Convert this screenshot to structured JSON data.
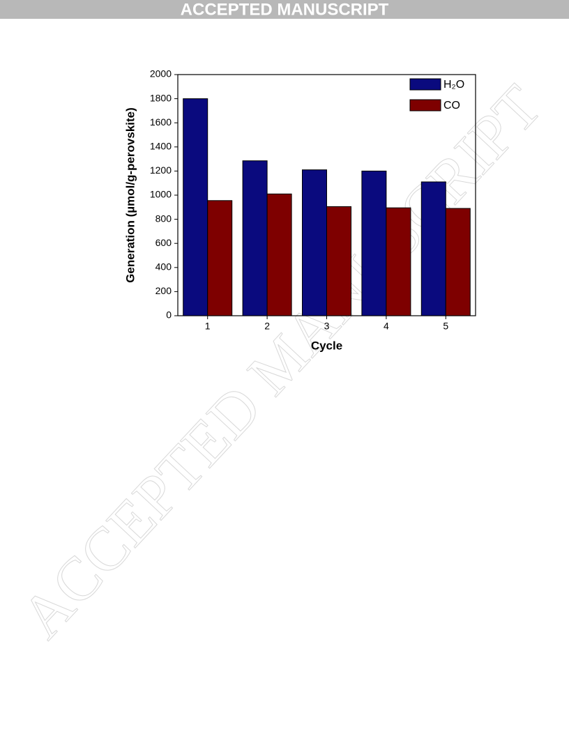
{
  "header": "ACCEPTED MANUSCRIPT",
  "watermark": "ACCEPTED MANUSCRIPT",
  "chart_data": {
    "type": "bar",
    "categories": [
      "1",
      "2",
      "3",
      "4",
      "5"
    ],
    "series": [
      {
        "name": "H₂O",
        "color": "#0a0a7e",
        "values": [
          1800,
          1285,
          1210,
          1200,
          1110
        ]
      },
      {
        "name": "CO",
        "color": "#7e0000",
        "values": [
          955,
          1010,
          905,
          895,
          890
        ]
      }
    ],
    "xlabel": "Cycle",
    "ylabel": "Generation (µmol/g-perovskite)",
    "ylim": [
      0,
      2000
    ],
    "yticks": [
      0,
      200,
      400,
      600,
      800,
      1000,
      1200,
      1400,
      1600,
      1800,
      2000
    ],
    "legend": "upper right"
  }
}
